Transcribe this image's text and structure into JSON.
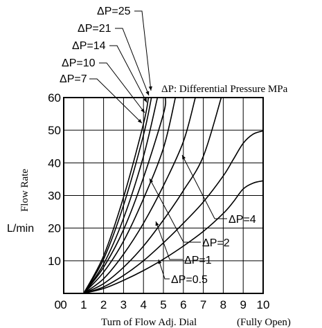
{
  "chart_data": {
    "type": "line",
    "ylabel": "Flow Rate",
    "yunit": "L/min",
    "xlabel": "Turn of Flow Adj. Dial",
    "xlabel_note": "(Fully Open)",
    "annotation": "ΔP: Differential Pressure MPa",
    "xlim": [
      0,
      10
    ],
    "ylim": [
      0,
      60
    ],
    "x_ticks": [
      "0",
      "1",
      "2",
      "3",
      "4",
      "5",
      "6",
      "7",
      "8",
      "9",
      "10"
    ],
    "y_ticks": [
      "10",
      "20",
      "30",
      "40",
      "50",
      "60"
    ],
    "grid": true,
    "series": [
      {
        "name": "ΔP=0.5",
        "x": [
          1,
          2,
          3,
          4,
          5,
          6,
          7,
          8,
          8.5,
          9,
          9.5,
          10
        ],
        "y": [
          0,
          1.5,
          4,
          7,
          10.5,
          14.5,
          19,
          24.5,
          28,
          32,
          33.8,
          34.5
        ]
      },
      {
        "name": "ΔP=1",
        "x": [
          1,
          2,
          3,
          4,
          5,
          6,
          7,
          8,
          8.5,
          9,
          9.5,
          10
        ],
        "y": [
          0,
          2,
          5.5,
          10,
          15.5,
          21.5,
          28,
          36,
          41,
          46,
          48.8,
          49.8
        ]
      },
      {
        "name": "ΔP=2",
        "x": [
          1,
          2,
          3,
          4,
          5,
          6,
          7,
          7.9
        ],
        "y": [
          0,
          3,
          8,
          14.5,
          22.5,
          31.5,
          42,
          60
        ]
      },
      {
        "name": "ΔP=4",
        "x": [
          1,
          2,
          3,
          4,
          5,
          6,
          6.6
        ],
        "y": [
          0,
          4.5,
          12,
          21.5,
          33,
          46.5,
          60
        ]
      },
      {
        "name": "ΔP=7",
        "x": [
          1,
          2,
          3,
          4,
          5,
          5.6
        ],
        "y": [
          0,
          6.5,
          16,
          29,
          44.5,
          60
        ]
      },
      {
        "name": "ΔP=10",
        "x": [
          1,
          2,
          3,
          4,
          5,
          5.1
        ],
        "y": [
          0,
          8,
          19.5,
          35.5,
          55,
          60
        ]
      },
      {
        "name": "ΔP=14",
        "x": [
          1,
          2,
          3,
          4,
          4.7
        ],
        "y": [
          0,
          9,
          23,
          42,
          60
        ]
      },
      {
        "name": "ΔP=21",
        "x": [
          1,
          2,
          3,
          4,
          4.4
        ],
        "y": [
          0,
          10.5,
          27,
          48.5,
          60
        ]
      },
      {
        "name": "ΔP=25",
        "x": [
          1,
          2,
          3,
          4,
          4.25
        ],
        "y": [
          0,
          11.5,
          29.5,
          52,
          60
        ]
      }
    ]
  }
}
